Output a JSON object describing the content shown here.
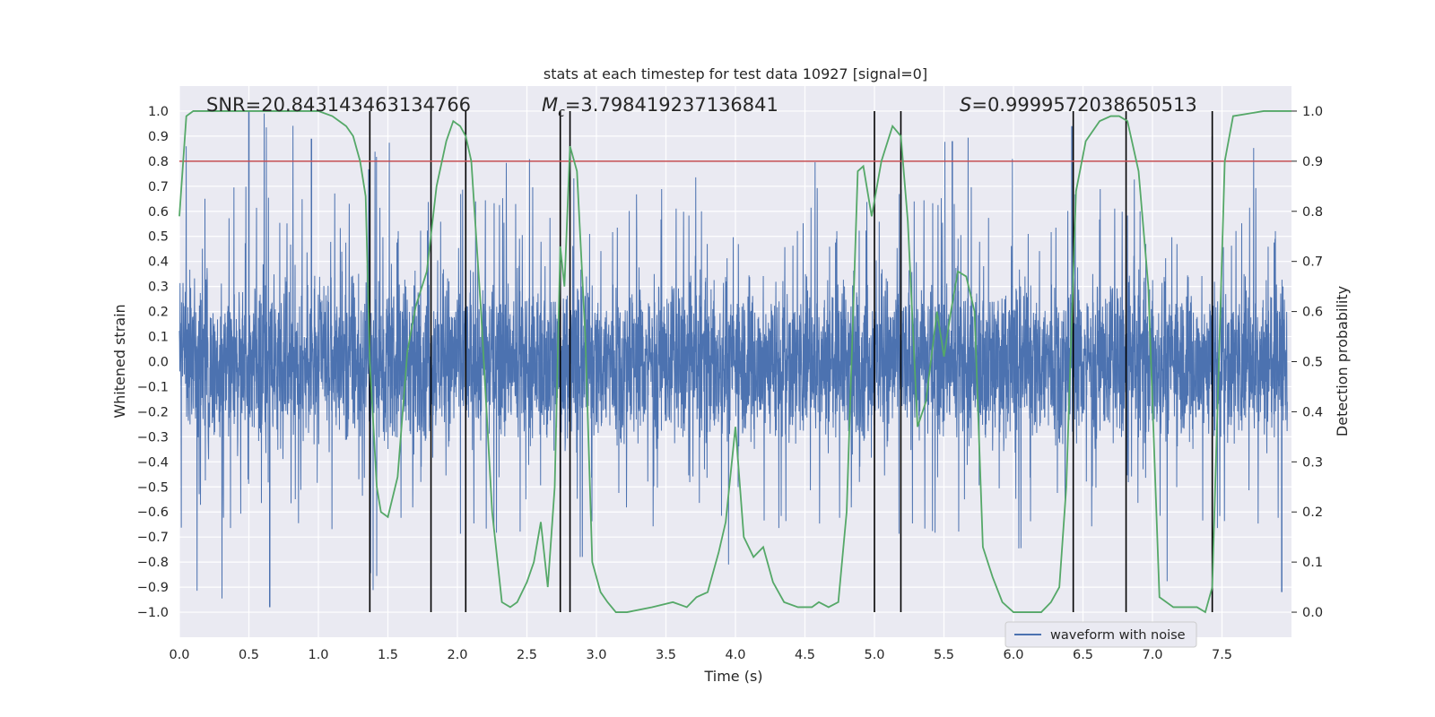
{
  "chart_data": {
    "type": "line",
    "title": "stats at each timestep for test data 10927 [signal=0]",
    "xlabel": "Time (s)",
    "ylabel": "Whitened strain",
    "ylabel_right": "Detection probability",
    "xlim": [
      0.0,
      8.0
    ],
    "ylim": [
      -1.1,
      1.1
    ],
    "ylim_right": [
      -0.05,
      1.05
    ],
    "xticks": [
      "0.0",
      "0.5",
      "1.0",
      "1.5",
      "2.0",
      "2.5",
      "3.0",
      "3.5",
      "4.0",
      "4.5",
      "5.0",
      "5.5",
      "6.0",
      "6.5",
      "7.0",
      "7.5"
    ],
    "yticks": [
      "1.0",
      "0.9",
      "0.8",
      "0.7",
      "0.6",
      "0.5",
      "0.4",
      "0.3",
      "0.2",
      "0.1",
      "0.0",
      "−0.1",
      "−0.2",
      "−0.3",
      "−0.4",
      "−0.5",
      "−0.6",
      "−0.7",
      "−0.8",
      "−0.9",
      "−1.0"
    ],
    "yticks_right": [
      "1.0",
      "0.9",
      "0.8",
      "0.7",
      "0.6",
      "0.5",
      "0.4",
      "0.3",
      "0.2",
      "0.1",
      "0.0"
    ],
    "annotations": {
      "snr": "SNR=20.843143463134766",
      "mc_symbol": "M",
      "mc_sub": "c",
      "mc_value": "=3.798419237136841",
      "s_symbol": "S",
      "s_value": "=0.9999572038650513"
    },
    "legend": {
      "label": "waveform with noise",
      "position": "bottom-right"
    },
    "threshold": 0.9,
    "vlines": [
      1.37,
      1.81,
      2.06,
      2.74,
      2.81,
      5.0,
      5.19,
      6.43,
      6.81,
      7.43
    ],
    "series": [
      {
        "name": "waveform with noise",
        "color": "#4c72b0",
        "kind": "strain",
        "spike_max": [
          1.0,
          0.89,
          0.85,
          0.84,
          0.84,
          0.94,
          0.83,
          0.9
        ],
        "spike_min": [
          -0.98,
          -0.96,
          -0.9,
          -0.85,
          -0.85,
          -0.88,
          -0.86,
          -0.92
        ]
      },
      {
        "name": "detection probability",
        "color": "#55a868",
        "x": [
          0.0,
          0.05,
          0.1,
          0.3,
          0.6,
          1.0,
          1.1,
          1.2,
          1.25,
          1.3,
          1.34,
          1.37,
          1.42,
          1.45,
          1.5,
          1.57,
          1.64,
          1.7,
          1.78,
          1.85,
          1.92,
          1.97,
          2.02,
          2.06,
          2.1,
          2.17,
          2.25,
          2.32,
          2.38,
          2.43,
          2.5,
          2.55,
          2.6,
          2.65,
          2.7,
          2.74,
          2.77,
          2.81,
          2.86,
          2.92,
          2.97,
          3.03,
          3.08,
          3.14,
          3.22,
          3.4,
          3.55,
          3.65,
          3.72,
          3.8,
          3.88,
          3.93,
          4.0,
          4.06,
          4.13,
          4.2,
          4.27,
          4.35,
          4.45,
          4.55,
          4.6,
          4.67,
          4.74,
          4.8,
          4.88,
          4.92,
          4.98,
          5.05,
          5.13,
          5.19,
          5.24,
          5.31,
          5.37,
          5.45,
          5.5,
          5.55,
          5.6,
          5.66,
          5.72,
          5.78,
          5.85,
          5.92,
          6.0,
          6.1,
          6.2,
          6.27,
          6.33,
          6.38,
          6.45,
          6.52,
          6.62,
          6.7,
          6.76,
          6.82,
          6.9,
          6.97,
          7.05,
          7.15,
          7.25,
          7.32,
          7.38,
          7.43,
          7.52,
          7.58,
          7.8,
          8.0
        ],
        "y": [
          0.79,
          0.99,
          1.0,
          1.0,
          1.0,
          1.0,
          0.99,
          0.97,
          0.95,
          0.9,
          0.83,
          0.5,
          0.25,
          0.2,
          0.19,
          0.27,
          0.52,
          0.61,
          0.68,
          0.85,
          0.94,
          0.98,
          0.97,
          0.95,
          0.9,
          0.6,
          0.2,
          0.02,
          0.01,
          0.02,
          0.06,
          0.1,
          0.18,
          0.05,
          0.25,
          0.73,
          0.65,
          0.93,
          0.88,
          0.55,
          0.1,
          0.04,
          0.02,
          0.0,
          0.0,
          0.01,
          0.02,
          0.01,
          0.03,
          0.04,
          0.12,
          0.18,
          0.37,
          0.15,
          0.11,
          0.13,
          0.06,
          0.02,
          0.01,
          0.01,
          0.02,
          0.01,
          0.02,
          0.2,
          0.88,
          0.89,
          0.79,
          0.9,
          0.97,
          0.95,
          0.78,
          0.37,
          0.42,
          0.6,
          0.51,
          0.6,
          0.68,
          0.67,
          0.6,
          0.13,
          0.07,
          0.02,
          0.0,
          0.0,
          0.0,
          0.02,
          0.05,
          0.25,
          0.84,
          0.94,
          0.98,
          0.99,
          0.99,
          0.98,
          0.88,
          0.65,
          0.03,
          0.01,
          0.01,
          0.01,
          0.0,
          0.05,
          0.9,
          0.99,
          1.0,
          1.0
        ]
      }
    ]
  }
}
